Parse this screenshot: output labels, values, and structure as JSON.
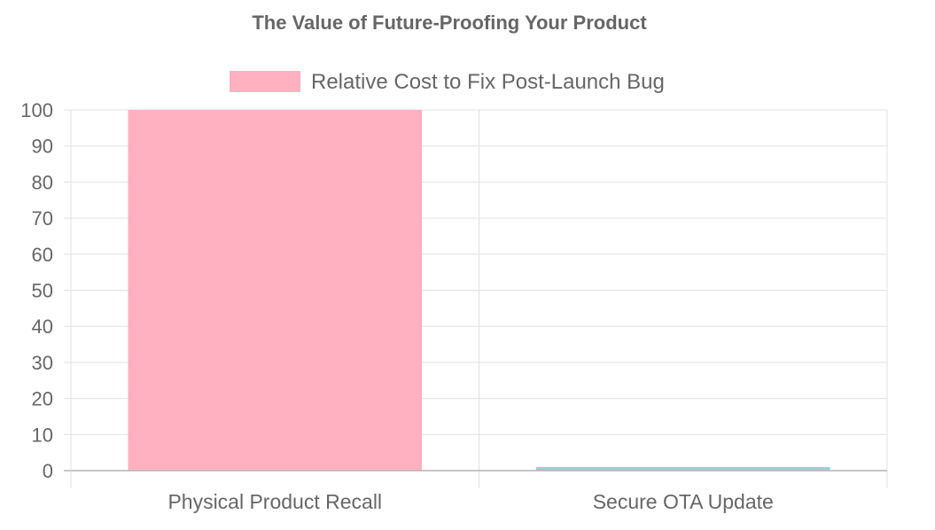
{
  "chart_data": {
    "type": "bar",
    "title": "The Value of Future-Proofing Your Product",
    "categories": [
      "Physical Product Recall",
      "Secure OTA Update"
    ],
    "series": [
      {
        "name": "Relative Cost to Fix Post-Launch Bug",
        "values": [
          100,
          1
        ],
        "colors": [
          "#ffb1c1",
          "#9ad0d0"
        ]
      }
    ],
    "legend": "top-center",
    "xlabel": "",
    "ylabel": "",
    "ylim": [
      0,
      100
    ],
    "ytick_step": 10,
    "grid": true
  }
}
